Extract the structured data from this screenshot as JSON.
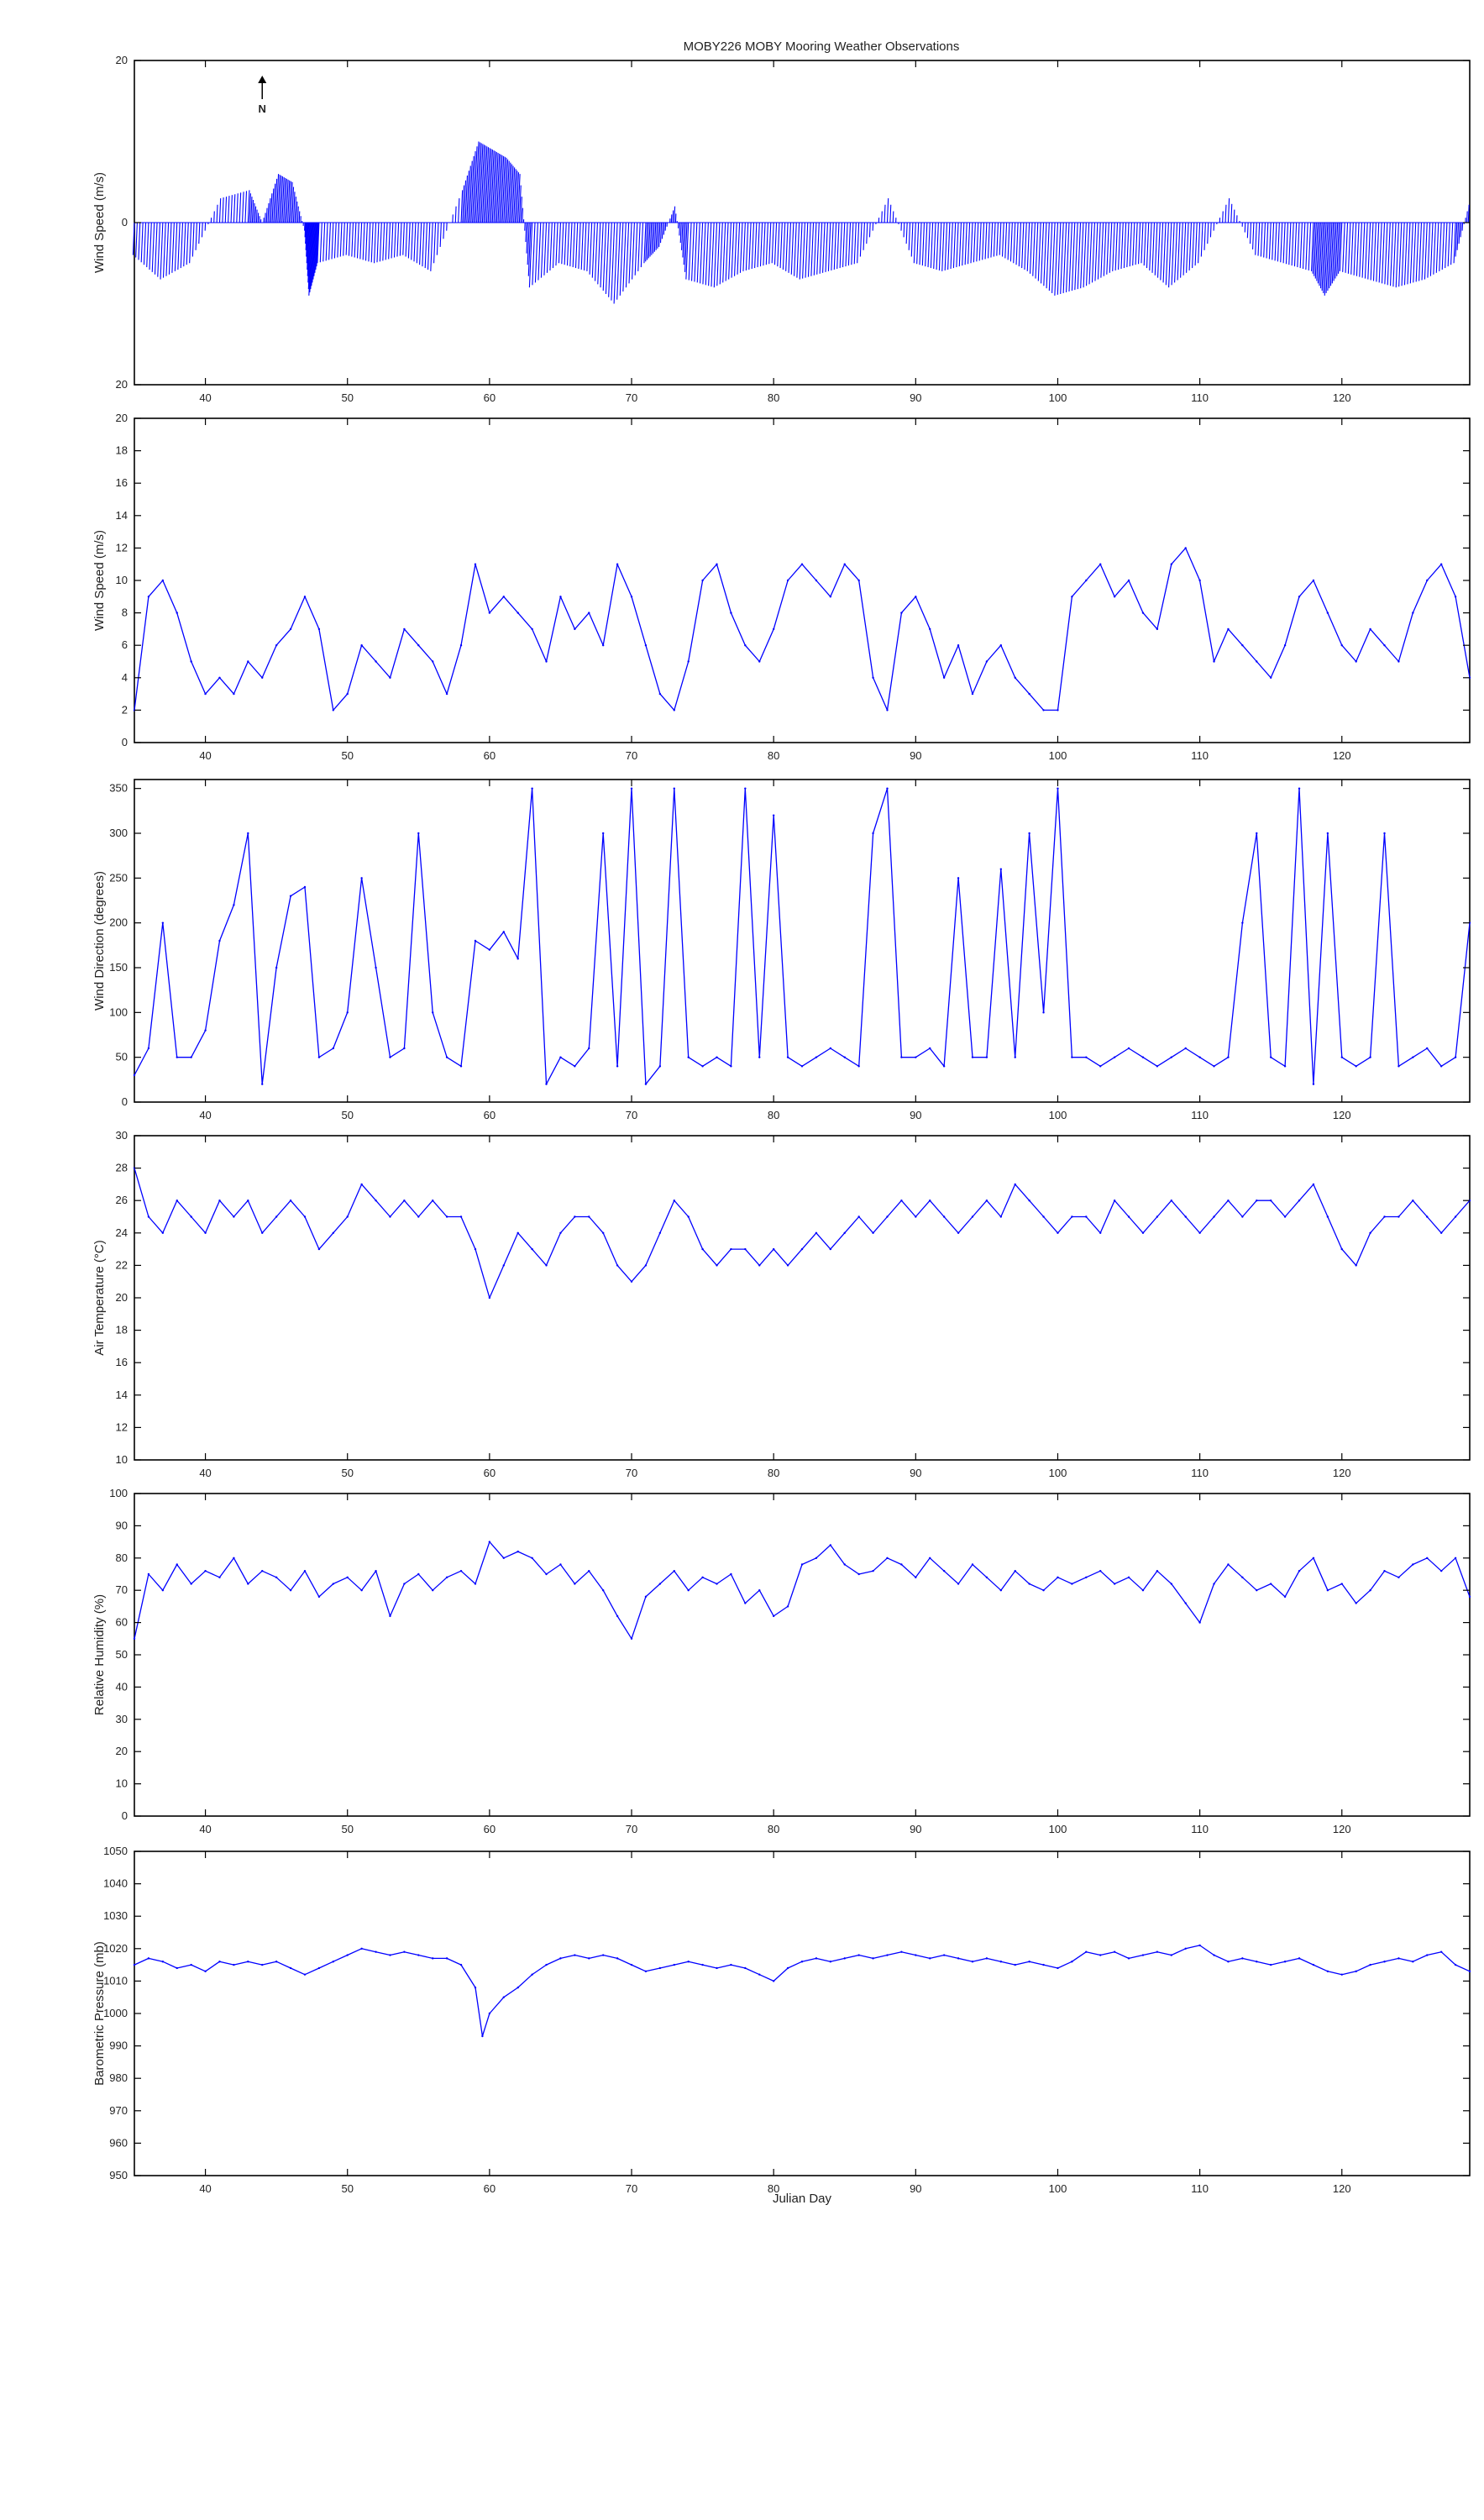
{
  "figure": {
    "title": "MOBY226 MOBY Mooring Weather Observations",
    "xlabel": "Julian Day",
    "north_label": "N",
    "line_color": "#0000ff"
  },
  "chart_data": [
    {
      "type": "line",
      "ylabel": "Wind Speed (m/s)",
      "variant": "stick",
      "ylim": [
        -20,
        20
      ],
      "yticks": [
        -20,
        0,
        20
      ],
      "ytick_labels": [
        "20",
        "0",
        "20"
      ],
      "xlim": [
        35,
        129
      ],
      "xticks": [
        40,
        50,
        60,
        70,
        80,
        90,
        100,
        110,
        120
      ],
      "x": [
        35,
        37,
        39,
        41,
        43,
        44,
        45,
        46,
        47,
        47.5,
        48,
        50,
        52,
        54,
        56,
        58,
        59,
        60,
        61,
        62,
        63,
        65,
        67,
        69,
        71,
        72,
        73,
        74,
        76,
        78,
        80,
        82,
        84,
        86,
        88,
        90,
        92,
        94,
        96,
        98,
        100,
        102,
        104,
        106,
        108,
        110,
        112,
        114,
        116,
        118,
        119,
        120,
        122,
        124,
        126,
        128,
        129
      ],
      "values": [
        -4,
        -7,
        -5,
        3,
        4,
        0,
        6,
        5,
        -1,
        -9,
        -5,
        -4,
        -5,
        -4,
        -6,
        4,
        10,
        9,
        8,
        6,
        -8,
        -5,
        -6,
        -10,
        -5,
        -3,
        2,
        -7,
        -8,
        -6,
        -5,
        -7,
        -6,
        -5,
        3,
        -5,
        -6,
        -5,
        -4,
        -6,
        -9,
        -8,
        -6,
        -5,
        -8,
        -5,
        3,
        -4,
        -5,
        -6,
        -9,
        -6,
        -7,
        -8,
        -7,
        -5,
        3
      ]
    },
    {
      "type": "line",
      "ylabel": "Wind Speed (m/s)",
      "ylim": [
        0,
        20
      ],
      "yticks": [
        0,
        2,
        4,
        6,
        8,
        10,
        12,
        14,
        16,
        18,
        20
      ],
      "xlim": [
        35,
        129
      ],
      "xticks": [
        40,
        50,
        60,
        70,
        80,
        90,
        100,
        110,
        120
      ],
      "x": [
        35,
        36,
        37,
        38,
        39,
        40,
        41,
        42,
        43,
        44,
        45,
        46,
        47,
        48,
        49,
        50,
        51,
        52,
        53,
        54,
        55,
        56,
        57,
        58,
        59,
        60,
        61,
        62,
        63,
        64,
        65,
        66,
        67,
        68,
        69,
        70,
        71,
        72,
        73,
        74,
        75,
        76,
        77,
        78,
        79,
        80,
        81,
        82,
        83,
        84,
        85,
        86,
        87,
        88,
        89,
        90,
        91,
        92,
        93,
        94,
        95,
        96,
        97,
        98,
        99,
        100,
        101,
        102,
        103,
        104,
        105,
        106,
        107,
        108,
        109,
        110,
        111,
        112,
        113,
        114,
        115,
        116,
        117,
        118,
        119,
        120,
        121,
        122,
        123,
        124,
        125,
        126,
        127,
        128,
        129
      ],
      "values": [
        2,
        9,
        10,
        8,
        5,
        3,
        4,
        3,
        5,
        4,
        6,
        7,
        9,
        7,
        2,
        3,
        6,
        5,
        4,
        7,
        6,
        5,
        3,
        6,
        11,
        8,
        9,
        8,
        7,
        5,
        9,
        7,
        8,
        6,
        11,
        9,
        6,
        3,
        2,
        5,
        10,
        11,
        8,
        6,
        5,
        7,
        10,
        11,
        10,
        9,
        11,
        10,
        4,
        2,
        8,
        9,
        7,
        4,
        6,
        3,
        5,
        6,
        4,
        3,
        2,
        2,
        9,
        10,
        11,
        9,
        10,
        8,
        7,
        11,
        12,
        10,
        5,
        7,
        6,
        5,
        4,
        6,
        9,
        10,
        8,
        6,
        5,
        7,
        6,
        5,
        8,
        10,
        11,
        9,
        4
      ]
    },
    {
      "type": "line",
      "ylabel": "Wind Direction (degrees)",
      "ylim": [
        0,
        360
      ],
      "yticks": [
        0,
        50,
        100,
        150,
        200,
        250,
        300,
        350
      ],
      "xlim": [
        35,
        129
      ],
      "xticks": [
        40,
        50,
        60,
        70,
        80,
        90,
        100,
        110,
        120
      ],
      "x": [
        35,
        36,
        37,
        38,
        39,
        40,
        41,
        42,
        43,
        44,
        45,
        46,
        47,
        48,
        49,
        50,
        51,
        52,
        53,
        54,
        55,
        56,
        57,
        58,
        59,
        60,
        61,
        62,
        63,
        64,
        65,
        66,
        67,
        68,
        69,
        70,
        71,
        72,
        73,
        74,
        75,
        76,
        77,
        78,
        79,
        80,
        81,
        82,
        83,
        84,
        85,
        86,
        87,
        88,
        89,
        90,
        91,
        92,
        93,
        94,
        95,
        96,
        97,
        98,
        99,
        100,
        101,
        102,
        103,
        104,
        105,
        106,
        107,
        108,
        109,
        110,
        111,
        112,
        113,
        114,
        115,
        116,
        117,
        118,
        119,
        120,
        121,
        122,
        123,
        124,
        125,
        126,
        127,
        128,
        129
      ],
      "values": [
        30,
        60,
        200,
        50,
        50,
        80,
        180,
        220,
        300,
        20,
        150,
        230,
        240,
        50,
        60,
        100,
        250,
        150,
        50,
        60,
        300,
        100,
        50,
        40,
        180,
        170,
        190,
        160,
        350,
        20,
        50,
        40,
        60,
        300,
        40,
        350,
        20,
        40,
        350,
        50,
        40,
        50,
        40,
        350,
        50,
        320,
        50,
        40,
        50,
        60,
        50,
        40,
        300,
        350,
        50,
        50,
        60,
        40,
        250,
        50,
        50,
        260,
        50,
        300,
        100,
        350,
        50,
        50,
        40,
        50,
        60,
        50,
        40,
        50,
        60,
        50,
        40,
        50,
        200,
        300,
        50,
        40,
        350,
        20,
        300,
        50,
        40,
        50,
        300,
        40,
        50,
        60,
        40,
        50,
        200
      ]
    },
    {
      "type": "line",
      "ylabel": "Air Temperature (°C)",
      "ylim": [
        10,
        30
      ],
      "yticks": [
        10,
        12,
        14,
        16,
        18,
        20,
        22,
        24,
        26,
        28,
        30
      ],
      "xlim": [
        35,
        129
      ],
      "xticks": [
        40,
        50,
        60,
        70,
        80,
        90,
        100,
        110,
        120
      ],
      "x": [
        35,
        36,
        37,
        38,
        39,
        40,
        41,
        42,
        43,
        44,
        45,
        46,
        47,
        48,
        49,
        50,
        51,
        52,
        53,
        54,
        55,
        56,
        57,
        58,
        59,
        60,
        61,
        62,
        63,
        64,
        65,
        66,
        67,
        68,
        69,
        70,
        71,
        72,
        73,
        74,
        75,
        76,
        77,
        78,
        79,
        80,
        81,
        82,
        83,
        84,
        85,
        86,
        87,
        88,
        89,
        90,
        91,
        92,
        93,
        94,
        95,
        96,
        97,
        98,
        99,
        100,
        101,
        102,
        103,
        104,
        105,
        106,
        107,
        108,
        109,
        110,
        111,
        112,
        113,
        114,
        115,
        116,
        117,
        118,
        119,
        120,
        121,
        122,
        123,
        124,
        125,
        126,
        127,
        128,
        129
      ],
      "values": [
        28,
        25,
        24,
        26,
        25,
        24,
        26,
        25,
        26,
        24,
        25,
        26,
        25,
        23,
        24,
        25,
        27,
        26,
        25,
        26,
        25,
        26,
        25,
        25,
        23,
        20,
        22,
        24,
        23,
        22,
        24,
        25,
        25,
        24,
        22,
        21,
        22,
        24,
        26,
        25,
        23,
        22,
        23,
        23,
        22,
        23,
        22,
        23,
        24,
        23,
        24,
        25,
        24,
        25,
        26,
        25,
        26,
        25,
        24,
        25,
        26,
        25,
        27,
        26,
        25,
        24,
        25,
        25,
        24,
        26,
        25,
        24,
        25,
        26,
        25,
        24,
        25,
        26,
        25,
        26,
        26,
        25,
        26,
        27,
        25,
        23,
        22,
        24,
        25,
        25,
        26,
        25,
        24,
        25,
        26
      ]
    },
    {
      "type": "line",
      "ylabel": "Relative Humidity (%)",
      "ylim": [
        0,
        100
      ],
      "yticks": [
        0,
        10,
        20,
        30,
        40,
        50,
        60,
        70,
        80,
        90,
        100
      ],
      "xlim": [
        35,
        129
      ],
      "xticks": [
        40,
        50,
        60,
        70,
        80,
        90,
        100,
        110,
        120
      ],
      "x": [
        35,
        36,
        37,
        38,
        39,
        40,
        41,
        42,
        43,
        44,
        45,
        46,
        47,
        48,
        49,
        50,
        51,
        52,
        53,
        54,
        55,
        56,
        57,
        58,
        59,
        60,
        61,
        62,
        63,
        64,
        65,
        66,
        67,
        68,
        69,
        70,
        71,
        72,
        73,
        74,
        75,
        76,
        77,
        78,
        79,
        80,
        81,
        82,
        83,
        84,
        85,
        86,
        87,
        88,
        89,
        90,
        91,
        92,
        93,
        94,
        95,
        96,
        97,
        98,
        99,
        100,
        101,
        102,
        103,
        104,
        105,
        106,
        107,
        108,
        109,
        110,
        111,
        112,
        113,
        114,
        115,
        116,
        117,
        118,
        119,
        120,
        121,
        122,
        123,
        124,
        125,
        126,
        127,
        128,
        129
      ],
      "values": [
        55,
        75,
        70,
        78,
        72,
        76,
        74,
        80,
        72,
        76,
        74,
        70,
        76,
        68,
        72,
        74,
        70,
        76,
        62,
        72,
        75,
        70,
        74,
        76,
        72,
        85,
        80,
        82,
        80,
        75,
        78,
        72,
        76,
        70,
        62,
        55,
        68,
        72,
        76,
        70,
        74,
        72,
        75,
        66,
        70,
        62,
        65,
        78,
        80,
        84,
        78,
        75,
        76,
        80,
        78,
        74,
        80,
        76,
        72,
        78,
        74,
        70,
        76,
        72,
        70,
        74,
        72,
        74,
        76,
        72,
        74,
        70,
        76,
        72,
        66,
        60,
        72,
        78,
        74,
        70,
        72,
        68,
        76,
        80,
        70,
        72,
        66,
        70,
        76,
        74,
        78,
        80,
        76,
        80,
        68
      ]
    },
    {
      "type": "line",
      "ylabel": "Barometric Pressure (mb)",
      "ylim": [
        950,
        1050
      ],
      "yticks": [
        950,
        960,
        970,
        980,
        990,
        1000,
        1010,
        1020,
        1030,
        1040,
        1050
      ],
      "xlim": [
        35,
        129
      ],
      "xticks": [
        40,
        50,
        60,
        70,
        80,
        90,
        100,
        110,
        120
      ],
      "x": [
        35,
        36,
        37,
        38,
        39,
        40,
        41,
        42,
        43,
        44,
        45,
        46,
        47,
        48,
        49,
        50,
        51,
        52,
        53,
        54,
        55,
        56,
        57,
        58,
        59,
        59.5,
        60,
        61,
        62,
        63,
        64,
        65,
        66,
        67,
        68,
        69,
        70,
        71,
        72,
        73,
        74,
        75,
        76,
        77,
        78,
        79,
        80,
        81,
        82,
        83,
        84,
        85,
        86,
        87,
        88,
        89,
        90,
        91,
        92,
        93,
        94,
        95,
        96,
        97,
        98,
        99,
        100,
        101,
        102,
        103,
        104,
        105,
        106,
        107,
        108,
        109,
        110,
        111,
        112,
        113,
        114,
        115,
        116,
        117,
        118,
        119,
        120,
        121,
        122,
        123,
        124,
        125,
        126,
        127,
        128,
        129
      ],
      "values": [
        1015,
        1017,
        1016,
        1014,
        1015,
        1013,
        1016,
        1015,
        1016,
        1015,
        1016,
        1014,
        1012,
        1014,
        1016,
        1018,
        1020,
        1019,
        1018,
        1019,
        1018,
        1017,
        1017,
        1015,
        1008,
        993,
        1000,
        1005,
        1008,
        1012,
        1015,
        1017,
        1018,
        1017,
        1018,
        1017,
        1015,
        1013,
        1014,
        1015,
        1016,
        1015,
        1014,
        1015,
        1014,
        1012,
        1010,
        1014,
        1016,
        1017,
        1016,
        1017,
        1018,
        1017,
        1018,
        1019,
        1018,
        1017,
        1018,
        1017,
        1016,
        1017,
        1016,
        1015,
        1016,
        1015,
        1014,
        1016,
        1019,
        1018,
        1019,
        1017,
        1018,
        1019,
        1018,
        1020,
        1021,
        1018,
        1016,
        1017,
        1016,
        1015,
        1016,
        1017,
        1015,
        1013,
        1012,
        1013,
        1015,
        1016,
        1017,
        1016,
        1018,
        1019,
        1015,
        1013
      ]
    }
  ]
}
